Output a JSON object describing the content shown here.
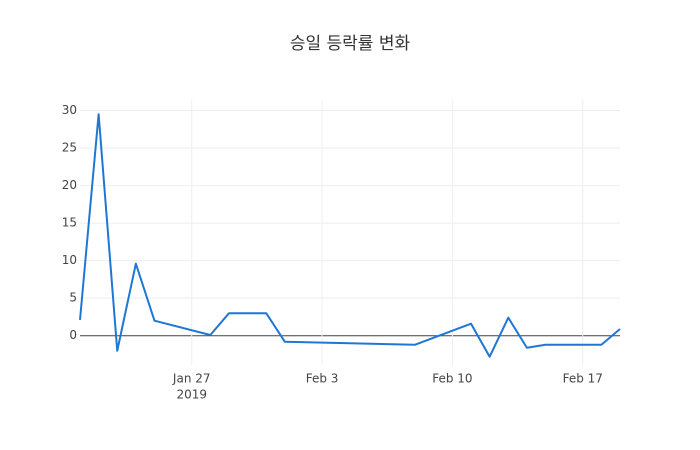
{
  "chart_data": {
    "type": "line",
    "title": "승일 등락률 변화",
    "x": [
      "2019-01-21",
      "2019-01-22",
      "2019-01-23",
      "2019-01-24",
      "2019-01-25",
      "2019-01-28",
      "2019-01-29",
      "2019-01-30",
      "2019-01-31",
      "2019-02-01",
      "2019-02-08",
      "2019-02-11",
      "2019-02-12",
      "2019-02-13",
      "2019-02-14",
      "2019-02-15",
      "2019-02-18",
      "2019-02-19"
    ],
    "series": [
      {
        "color": "#1f77d4",
        "values": [
          2.1,
          29.5,
          -2,
          9.6,
          2,
          0.1,
          3,
          3,
          3,
          -0.8,
          -1.2,
          1.6,
          -2.8,
          2.4,
          -1.6,
          -1.2,
          -1.2,
          0.9
        ]
      }
    ],
    "xlim": [
      "2019-01-21",
      "2019-02-19"
    ],
    "xticks": [
      {
        "value": "2019-01-27",
        "label": "Jan 27"
      },
      {
        "value": "2019-02-03",
        "label": "Feb 3"
      },
      {
        "value": "2019-02-10",
        "label": "Feb 10"
      },
      {
        "value": "2019-02-17",
        "label": "Feb 17"
      }
    ],
    "x_year_label": "2019",
    "ylim": [
      -3.9,
      31.4
    ],
    "yticks": [
      0,
      5,
      10,
      15,
      20,
      25,
      30
    ],
    "grid": true
  }
}
